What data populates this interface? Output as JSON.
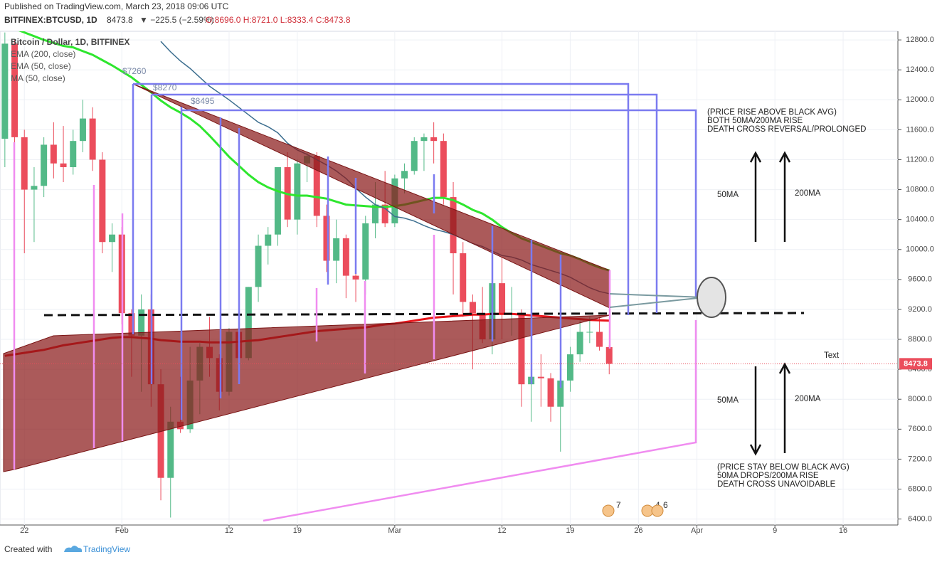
{
  "header": {
    "published": "Published on TradingView.com, March 23, 2018 09:06 UTC",
    "symbol": "BITFINEX:BTCUSD, 1D",
    "last": "8473.8",
    "change": "▼ −225.5 (−2.59%)",
    "quote": "O:8696.0 H:8721.0 L:8333.4 C:8473.8"
  },
  "chart_data": {
    "type": "candlestick",
    "title": "Bitcoin / Dollar, 1D, BITFINEX",
    "categories": [
      null,
      null,
      "22",
      null,
      null,
      null,
      null,
      null,
      null,
      null,
      null,
      null,
      "Feb",
      null,
      null,
      null,
      null,
      null,
      null,
      null,
      null,
      null,
      null,
      "12",
      null,
      null,
      null,
      null,
      null,
      null,
      "19",
      null,
      null,
      null,
      null,
      null,
      null,
      null,
      null,
      null,
      "Mar",
      null,
      null,
      null,
      null,
      null,
      null,
      null,
      null,
      null,
      null,
      "12",
      null,
      null,
      null,
      null,
      null,
      null,
      "19",
      null,
      null,
      null,
      null,
      null,
      null,
      "26",
      null,
      null,
      null,
      null,
      null,
      "Apr",
      null,
      null,
      null,
      null,
      null,
      null,
      null,
      "9",
      null,
      null,
      null,
      null,
      null,
      null,
      "16",
      null,
      null,
      null,
      null,
      null
    ],
    "ohlc": {
      "open": [
        11480,
        12750,
        11500,
        10800,
        10850,
        11400,
        11150,
        11100,
        11450,
        11750,
        11200,
        10100,
        10200,
        9150,
        8850,
        9200,
        8200,
        6950,
        7700,
        7600,
        8250,
        8700,
        8550,
        8100,
        8900,
        8550,
        9500,
        10050,
        10200,
        11100,
        10400,
        11150,
        11250,
        10450,
        9850,
        10150,
        9650,
        9600,
        10350,
        10600,
        10350,
        10950,
        11050,
        11450,
        11500,
        11450,
        10700,
        9950,
        9300,
        9150,
        8800,
        9550,
        9150,
        9150,
        8200,
        8300,
        8280,
        7900,
        8250,
        8600,
        8900,
        8900,
        8696,
        null,
        null,
        null,
        null,
        null,
        null,
        null,
        null,
        null,
        null,
        null,
        null,
        null,
        null,
        null,
        null,
        null,
        null,
        null,
        null,
        null,
        null,
        null,
        null,
        null,
        null,
        null,
        null,
        null
      ],
      "high": [
        12900,
        12800,
        11600,
        11100,
        11500,
        11700,
        11650,
        11600,
        12000,
        11900,
        11300,
        10350,
        10300,
        9200,
        9400,
        9400,
        8400,
        7900,
        8300,
        8700,
        8750,
        9100,
        8600,
        8950,
        8950,
        9500,
        10200,
        10300,
        11100,
        11300,
        11200,
        11300,
        11300,
        10600,
        10400,
        10200,
        9900,
        10450,
        10900,
        11050,
        11000,
        11150,
        11500,
        11550,
        11700,
        11550,
        10900,
        10100,
        9400,
        9500,
        9650,
        9900,
        9500,
        9200,
        8400,
        8600,
        8350,
        8600,
        8700,
        9050,
        9100,
        9100,
        8721,
        null,
        null,
        null,
        null,
        null,
        null,
        null,
        null,
        null,
        null,
        null,
        null,
        null,
        null,
        null,
        null,
        null,
        null,
        null,
        null,
        null,
        null,
        null,
        null,
        null,
        null,
        null,
        null,
        null
      ],
      "low": [
        11100,
        10950,
        9950,
        10100,
        10700,
        10950,
        10900,
        11000,
        11300,
        11050,
        9950,
        9700,
        9000,
        8300,
        8100,
        7900,
        6650,
        6420,
        7550,
        7550,
        7800,
        8300,
        7850,
        8050,
        8400,
        8520,
        9300,
        9800,
        10050,
        10300,
        10200,
        10900,
        10300,
        9700,
        9550,
        9350,
        9300,
        9400,
        10150,
        10300,
        10300,
        10750,
        11000,
        11050,
        11150,
        10600,
        9400,
        9100,
        8400,
        8750,
        8600,
        8800,
        8850,
        7900,
        7700,
        7900,
        7700,
        7300,
        8100,
        8500,
        8750,
        8650,
        8333.4,
        null,
        null,
        null,
        null,
        null,
        null,
        null,
        null,
        null,
        null,
        null,
        null,
        null,
        null,
        null,
        null,
        null,
        null,
        null,
        null,
        null,
        null,
        null,
        null,
        null,
        null,
        null,
        null,
        null
      ],
      "close": [
        12750,
        11500,
        10800,
        10850,
        11400,
        11150,
        11100,
        11450,
        11750,
        11200,
        10100,
        10200,
        9150,
        8850,
        9200,
        8200,
        6950,
        7700,
        7600,
        8250,
        8700,
        8550,
        8100,
        8900,
        8550,
        9500,
        10050,
        10200,
        11100,
        10400,
        11150,
        11250,
        10450,
        9850,
        10150,
        9650,
        9600,
        10350,
        10600,
        10350,
        10950,
        11050,
        11450,
        11500,
        11450,
        10700,
        9950,
        9300,
        9150,
        8800,
        9550,
        9150,
        9150,
        8200,
        8300,
        8280,
        7900,
        8250,
        8600,
        8900,
        8900,
        8700,
        8473.8,
        null,
        null,
        null,
        null,
        null,
        null,
        null,
        null,
        null,
        null,
        null,
        null,
        null,
        null,
        null,
        null,
        null,
        null,
        null,
        null,
        null,
        null,
        null,
        null,
        null,
        null,
        null,
        null,
        null
      ]
    },
    "up_color": "#53b987",
    "down_color": "#eb4d5c",
    "series": [
      {
        "name": "EMA (200, close)",
        "color": "#e8141a",
        "values": [
          8580,
          8600,
          8620,
          8640,
          8660,
          8690,
          8720,
          8740,
          8760,
          8780,
          8800,
          8820,
          8830,
          8830,
          8820,
          8810,
          8790,
          8780,
          8770,
          8770,
          8770,
          8760,
          8760,
          8760,
          8770,
          8780,
          8790,
          8810,
          8830,
          8850,
          8870,
          8890,
          8910,
          8920,
          8930,
          8940,
          8950,
          8960,
          8980,
          9000,
          9010,
          9030,
          9050,
          9070,
          9090,
          9100,
          9110,
          9120,
          9130,
          9130,
          9140,
          9140,
          9140,
          9130,
          9120,
          9110,
          9100,
          9090,
          9080,
          9070,
          9060,
          9055,
          9050,
          null,
          null,
          null,
          null,
          null,
          null,
          null,
          null,
          null,
          null,
          null,
          null,
          null,
          null,
          null,
          null,
          null,
          null,
          null,
          null,
          null,
          null,
          null,
          null,
          null,
          null,
          null,
          null,
          null
        ]
      },
      {
        "name": "EMA (50, close)",
        "color": "#2ee62e",
        "values": [
          13000,
          12950,
          12900,
          12850,
          12800,
          12760,
          12720,
          12700,
          12650,
          12600,
          12530,
          12460,
          12380,
          12300,
          12200,
          12100,
          11990,
          11900,
          11830,
          11750,
          11650,
          11520,
          11380,
          11240,
          11120,
          11000,
          10900,
          10830,
          10780,
          10740,
          10720,
          10720,
          10700,
          10680,
          10640,
          10600,
          10590,
          10580,
          10570,
          10570,
          10580,
          10600,
          10630,
          10660,
          10690,
          10690,
          10660,
          10600,
          10530,
          10480,
          10400,
          10300,
          10220,
          10150,
          10100,
          10050,
          10000,
          9950,
          9920,
          9870,
          9810,
          9760,
          9720,
          null,
          null,
          null,
          null,
          null,
          null,
          null,
          null,
          null,
          null,
          null,
          null,
          null,
          null,
          null,
          null,
          null,
          null,
          null,
          null,
          null,
          null,
          null,
          null,
          null,
          null,
          null,
          null,
          null
        ]
      },
      {
        "name": "MA (50, close)",
        "color": "#3c6e8f",
        "values": [
          null,
          null,
          null,
          null,
          null,
          null,
          null,
          null,
          null,
          null,
          null,
          null,
          null,
          null,
          null,
          null,
          12780,
          12640,
          12520,
          12420,
          12300,
          12180,
          12090,
          12000,
          11900,
          11800,
          11700,
          11640,
          11560,
          11420,
          11330,
          11270,
          11200,
          11130,
          11050,
          10950,
          10820,
          10700,
          10600,
          10550,
          10440,
          10420,
          10380,
          10320,
          10270,
          10240,
          10200,
          10140,
          10080,
          10040,
          9980,
          9920,
          9900,
          9860,
          9800,
          9760,
          9720,
          9680,
          9630,
          9560,
          9490,
          9440,
          9410,
          null,
          null,
          null,
          null,
          null,
          null,
          null,
          null,
          null,
          null,
          null,
          null,
          null,
          null,
          null,
          null,
          null,
          null,
          null,
          null,
          null,
          null,
          null,
          null,
          null,
          null,
          null,
          null,
          null
        ]
      }
    ],
    "ylim": [
      6320,
      12915
    ],
    "yticks": [
      {
        "value": 6400,
        "label": "6400.0"
      },
      {
        "value": 6800,
        "label": "6800.0"
      },
      {
        "value": 7200,
        "label": "7200.0"
      },
      {
        "value": 7600,
        "label": "7600.0"
      },
      {
        "value": 8000,
        "label": "8000.0"
      },
      {
        "value": 8400,
        "label": "8400.0"
      },
      {
        "value": 8800,
        "label": "8800.0"
      },
      {
        "value": 9200,
        "label": "9200.0"
      },
      {
        "value": 9600,
        "label": "9600.0"
      },
      {
        "value": 10000,
        "label": "10000.0"
      },
      {
        "value": 10400,
        "label": "10400.0"
      },
      {
        "value": 10800,
        "label": "10800.0"
      },
      {
        "value": 11200,
        "label": "11200.0"
      },
      {
        "value": 11600,
        "label": "11600.0"
      },
      {
        "value": 12000,
        "label": "12000.0"
      },
      {
        "value": 12400,
        "label": "12400.0"
      },
      {
        "value": 12800,
        "label": "12800.0"
      }
    ],
    "grid": true,
    "annotations": [
      "$7260",
      "$8270",
      "$8495",
      "(PRICE RISE ABOVE BLACK AVG)",
      "BOTH 50MA/200MA RISE",
      "DEATH CROSS REVERSAL/PROLONGED",
      "50MA",
      "200MA",
      "Text",
      "50MA",
      "200MA",
      "(PRICE STAY BELOW BLACK AVG)",
      "50MA DROPS/200MA RISE",
      "DEATH CROSS UNAVOIDABLE"
    ],
    "events": [
      7,
      4,
      6
    ]
  },
  "footer": {
    "created": "Created with",
    "brand": "TradingView"
  }
}
